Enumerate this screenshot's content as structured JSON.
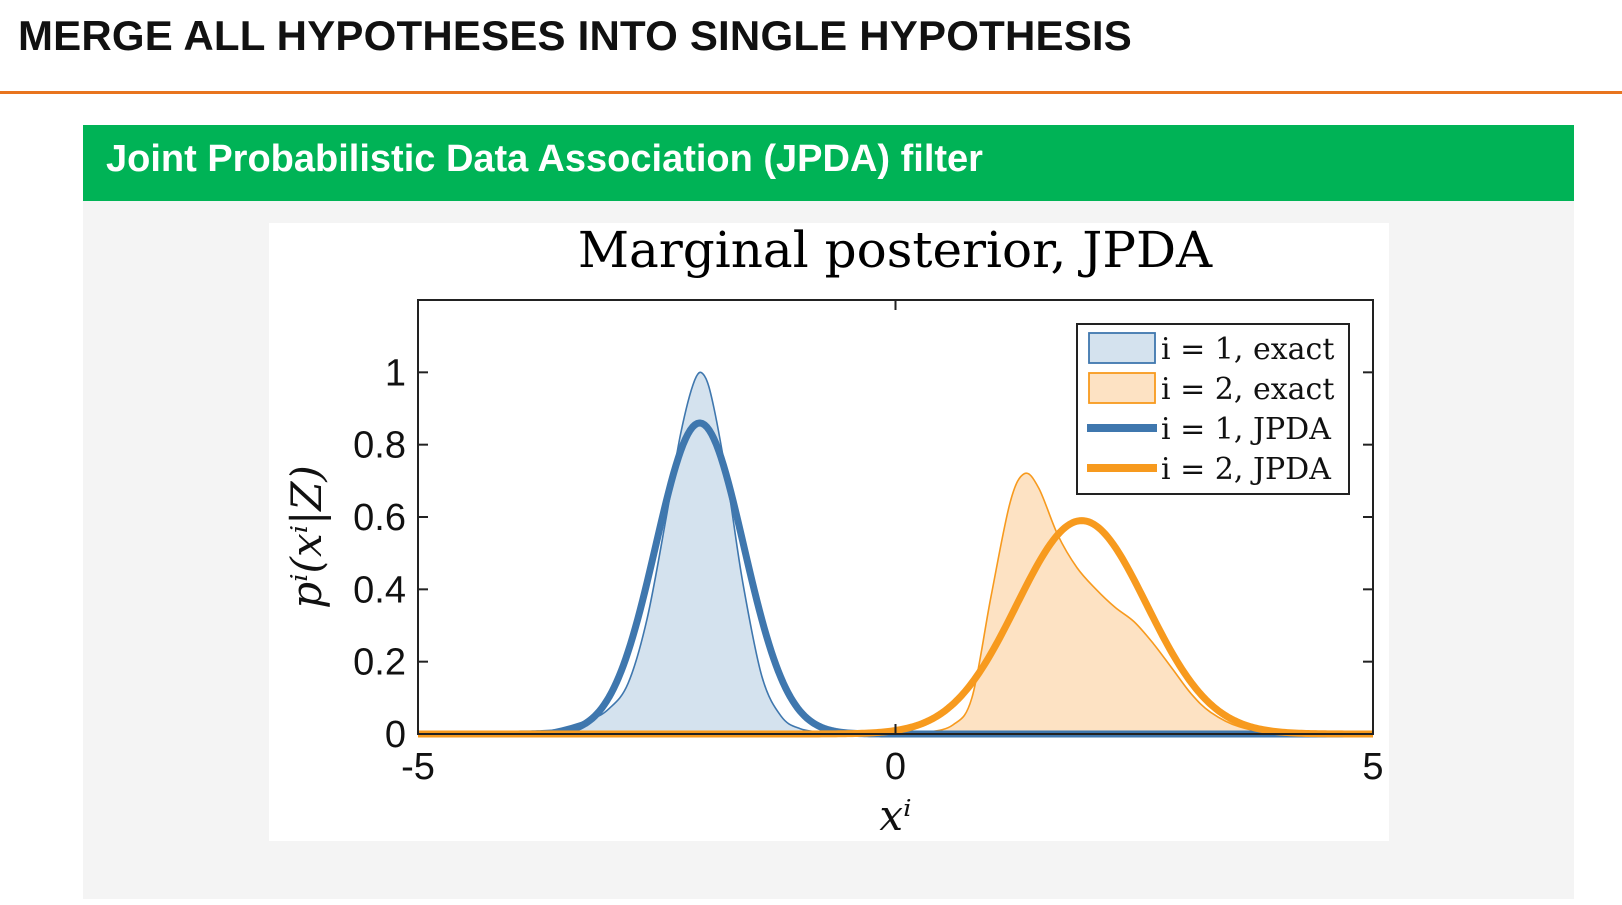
{
  "slide": {
    "title": "MERGE ALL HYPOTHESES INTO SINGLE HYPOTHESIS",
    "rule_color": "#e8741e"
  },
  "panel": {
    "header": "Joint Probabilistic Data Association (JPDA) filter",
    "header_color": "#00b356",
    "background": "#f4f4f4"
  },
  "chart_data": {
    "type": "area",
    "title": "Marginal posterior, JPDA",
    "xlabel": "x^i",
    "ylabel": "p^i(x^i|Z)",
    "xlim": [
      -5,
      5
    ],
    "ylim": [
      0,
      1.2
    ],
    "xticks": [
      -5,
      0,
      5
    ],
    "xtick_labels": [
      "-5",
      "0",
      "5"
    ],
    "yticks": [
      0,
      0.2,
      0.4,
      0.6,
      0.8,
      1
    ],
    "ytick_labels": [
      "0",
      "0.2",
      "0.4",
      "0.6",
      "0.8",
      "1"
    ],
    "grid": false,
    "legend_position": "top-right",
    "series": [
      {
        "name": "i = 1, exact",
        "style": "filled",
        "color": "#3f77ae",
        "fill": "#d4e2ee",
        "points": [
          [
            -5,
            0
          ],
          [
            -4,
            0.0
          ],
          [
            -3.6,
            0.01
          ],
          [
            -3.2,
            0.04
          ],
          [
            -3.0,
            0.07
          ],
          [
            -2.8,
            0.14
          ],
          [
            -2.6,
            0.32
          ],
          [
            -2.4,
            0.6
          ],
          [
            -2.25,
            0.83
          ],
          [
            -2.1,
            0.98
          ],
          [
            -2.0,
            0.99
          ],
          [
            -1.9,
            0.9
          ],
          [
            -1.75,
            0.68
          ],
          [
            -1.6,
            0.42
          ],
          [
            -1.4,
            0.16
          ],
          [
            -1.2,
            0.05
          ],
          [
            -1.0,
            0.015
          ],
          [
            -0.7,
            0.003
          ],
          [
            -0.3,
            0
          ],
          [
            5,
            0
          ]
        ]
      },
      {
        "name": "i = 2, exact",
        "style": "filled",
        "color": "#f79a1e",
        "fill": "#fde2c3",
        "points": [
          [
            -5,
            0
          ],
          [
            0.0,
            0
          ],
          [
            0.3,
            0.004
          ],
          [
            0.6,
            0.025
          ],
          [
            0.8,
            0.1
          ],
          [
            1.0,
            0.38
          ],
          [
            1.2,
            0.64
          ],
          [
            1.35,
            0.72
          ],
          [
            1.5,
            0.68
          ],
          [
            1.7,
            0.55
          ],
          [
            1.9,
            0.46
          ],
          [
            2.1,
            0.4
          ],
          [
            2.3,
            0.35
          ],
          [
            2.5,
            0.31
          ],
          [
            2.7,
            0.25
          ],
          [
            2.9,
            0.18
          ],
          [
            3.1,
            0.11
          ],
          [
            3.3,
            0.06
          ],
          [
            3.6,
            0.02
          ],
          [
            4.0,
            0.004
          ],
          [
            5,
            0
          ]
        ]
      },
      {
        "name": "i = 1, JPDA",
        "style": "line",
        "color": "#3f77ae",
        "gaussian": {
          "mean": -2.05,
          "sd": 0.46,
          "peak": 0.86
        }
      },
      {
        "name": "i = 2, JPDA",
        "style": "line",
        "color": "#f79a1e",
        "gaussian": {
          "mean": 1.95,
          "sd": 0.68,
          "peak": 0.59
        }
      }
    ]
  }
}
